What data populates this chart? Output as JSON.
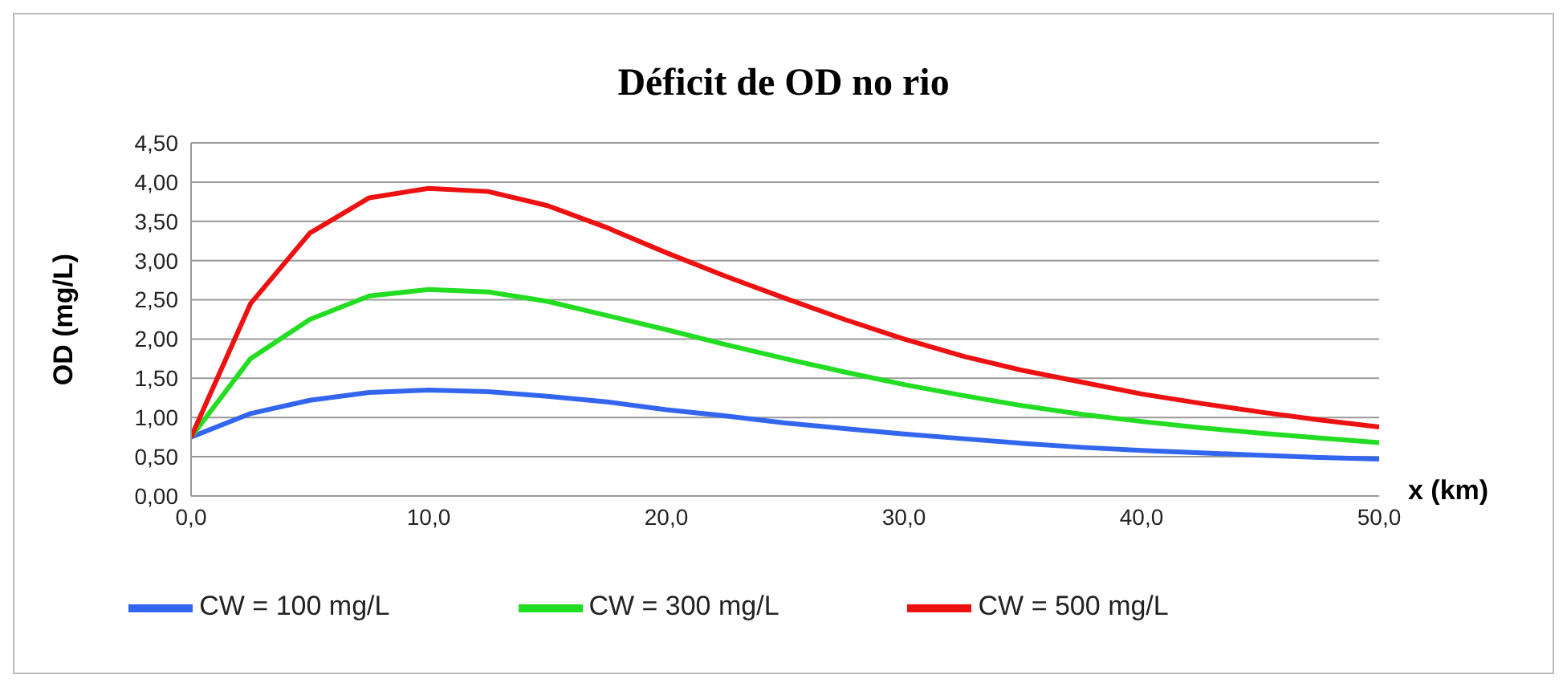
{
  "chart_data": {
    "type": "line",
    "title": "Déficit de OD no rio",
    "xlabel": "x (km)",
    "ylabel": "OD (mg/L)",
    "x": [
      0,
      2.5,
      5,
      7.5,
      10,
      12.5,
      15,
      17.5,
      20,
      22.5,
      25,
      27.5,
      30,
      32.5,
      35,
      37.5,
      40,
      42.5,
      45,
      47.5,
      50
    ],
    "series": [
      {
        "name": "CW = 100 mg/L",
        "color": "#3366ee",
        "values": [
          0.75,
          1.05,
          1.22,
          1.32,
          1.35,
          1.33,
          1.27,
          1.2,
          1.1,
          1.02,
          0.93,
          0.86,
          0.79,
          0.73,
          0.67,
          0.62,
          0.58,
          0.55,
          0.52,
          0.49,
          0.47
        ]
      },
      {
        "name": "CW = 300 mg/L",
        "color": "#22dd22",
        "values": [
          0.75,
          1.75,
          2.25,
          2.55,
          2.63,
          2.6,
          2.48,
          2.3,
          2.12,
          1.93,
          1.75,
          1.58,
          1.42,
          1.28,
          1.15,
          1.04,
          0.95,
          0.87,
          0.8,
          0.74,
          0.68
        ]
      },
      {
        "name": "CW = 500 mg/L",
        "color": "#ee1111",
        "values": [
          0.75,
          2.45,
          3.35,
          3.8,
          3.92,
          3.88,
          3.7,
          3.42,
          3.1,
          2.8,
          2.52,
          2.25,
          2.0,
          1.78,
          1.6,
          1.45,
          1.3,
          1.18,
          1.07,
          0.97,
          0.88
        ]
      }
    ],
    "xlim": [
      0,
      50
    ],
    "xticks": [
      {
        "value": 0,
        "label": "0,0"
      },
      {
        "value": 10,
        "label": "10,0"
      },
      {
        "value": 20,
        "label": "20,0"
      },
      {
        "value": 30,
        "label": "30,0"
      },
      {
        "value": 40,
        "label": "40,0"
      },
      {
        "value": 50,
        "label": "50,0"
      }
    ],
    "ylim": [
      0,
      4.5
    ],
    "yticks": [
      {
        "value": 0,
        "label": "0,00"
      },
      {
        "value": 0.5,
        "label": "0,50"
      },
      {
        "value": 1,
        "label": "1,00"
      },
      {
        "value": 1.5,
        "label": "1,50"
      },
      {
        "value": 2,
        "label": "2,00"
      },
      {
        "value": 2.5,
        "label": "2,50"
      },
      {
        "value": 3,
        "label": "3,00"
      },
      {
        "value": 3.5,
        "label": "3,50"
      },
      {
        "value": 4,
        "label": "4,00"
      },
      {
        "value": 4.5,
        "label": "4,50"
      }
    ],
    "grid": "y",
    "legend": "bottom",
    "marker": "none",
    "line_style": "solid"
  }
}
